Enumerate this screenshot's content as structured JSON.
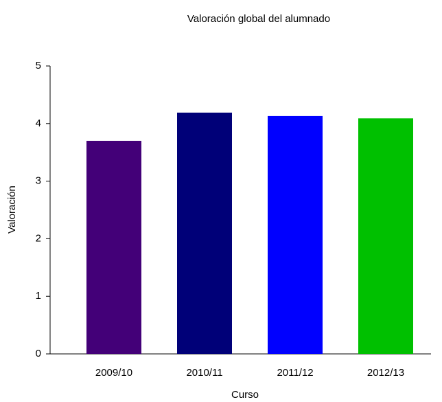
{
  "chart_data": {
    "type": "bar",
    "title": "Valoración global del alumnado",
    "x_label": "Curso",
    "y_label": "Valoración",
    "categories": [
      "2009/10",
      "2010/11",
      "2011/12",
      "2012/13"
    ],
    "values": [
      3.7,
      4.19,
      4.13,
      4.09
    ],
    "colors": [
      "#430078",
      "#000078",
      "#0000ff",
      "#00c000"
    ],
    "ylim": [
      0,
      5
    ],
    "yticks": [
      0,
      1,
      2,
      3,
      4,
      5
    ],
    "grid": false
  }
}
